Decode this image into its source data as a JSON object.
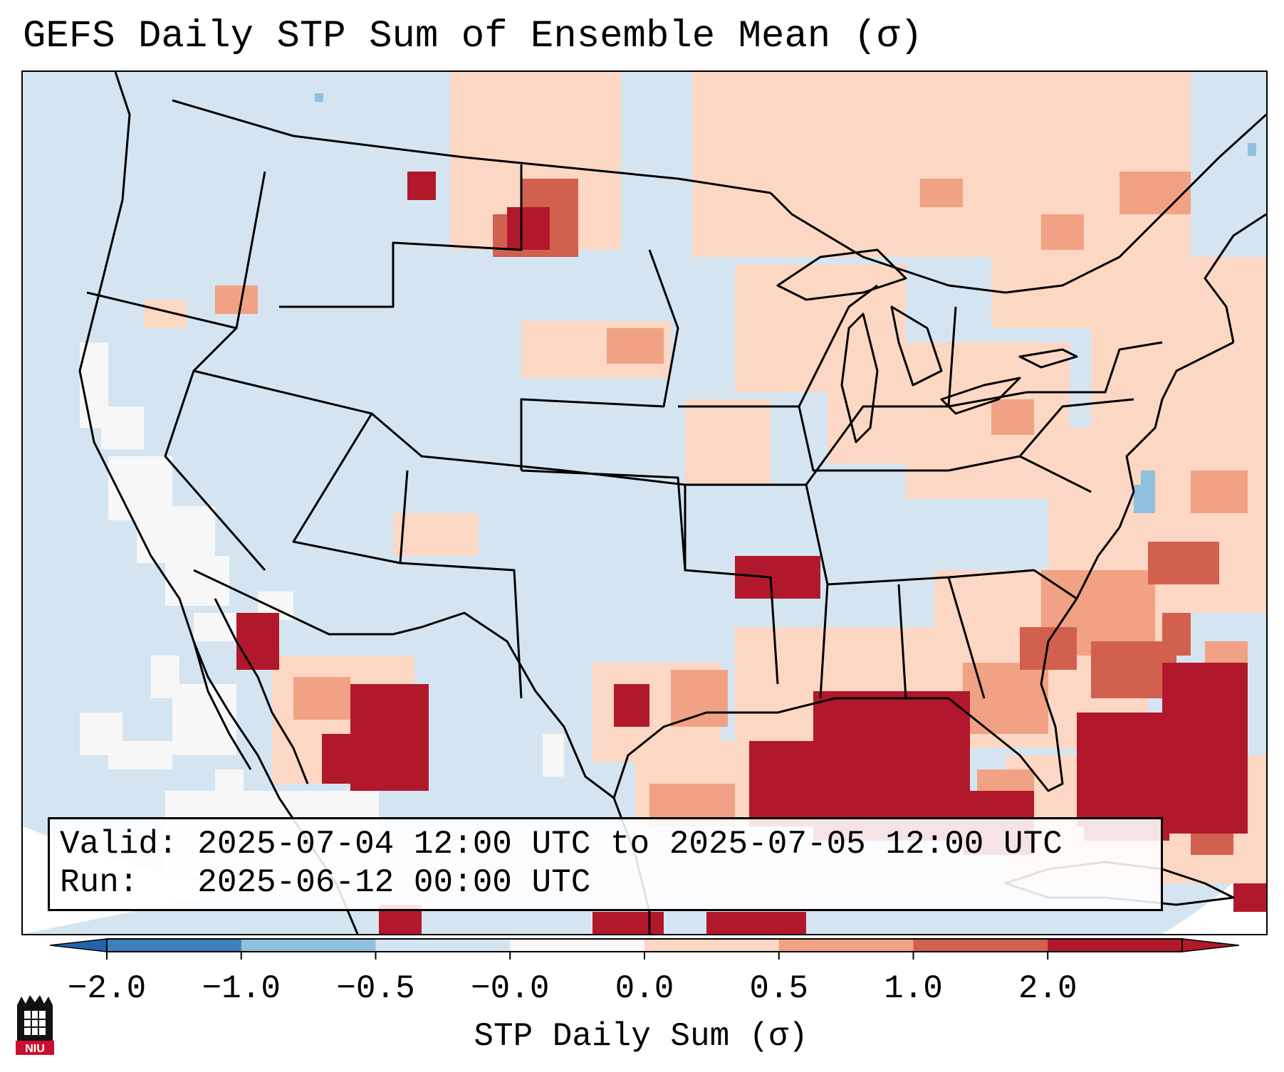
{
  "title": "GEFS Daily STP Sum of Ensemble Mean (σ)",
  "info": {
    "valid_line": "Valid: 2025-07-04 12:00 UTC to 2025-07-05 12:00 UTC",
    "run_line": "Run:   2025-06-12 00:00 UTC"
  },
  "colorbar": {
    "label": "STP Daily Sum (σ)",
    "ticks": [
      "−2.0",
      "−1.0",
      "−0.5",
      "−0.0",
      "0.0",
      "0.5",
      "1.0",
      "2.0"
    ],
    "colors": [
      "#3f7fbb",
      "#8fc0de",
      "#d4e5f1",
      "#f7f7f7",
      "#fbd7c4",
      "#f1a284",
      "#d2604f",
      "#b2182b"
    ],
    "extend_low_color": "#2166ac",
    "extend_high_color": "#b2182b"
  },
  "map": {
    "ocean_color": "#d4e5f1",
    "outline_color": "#000000"
  },
  "logo": {
    "text": "NIU",
    "icon": "niu-castle-logo",
    "color": "#c8102e"
  }
}
